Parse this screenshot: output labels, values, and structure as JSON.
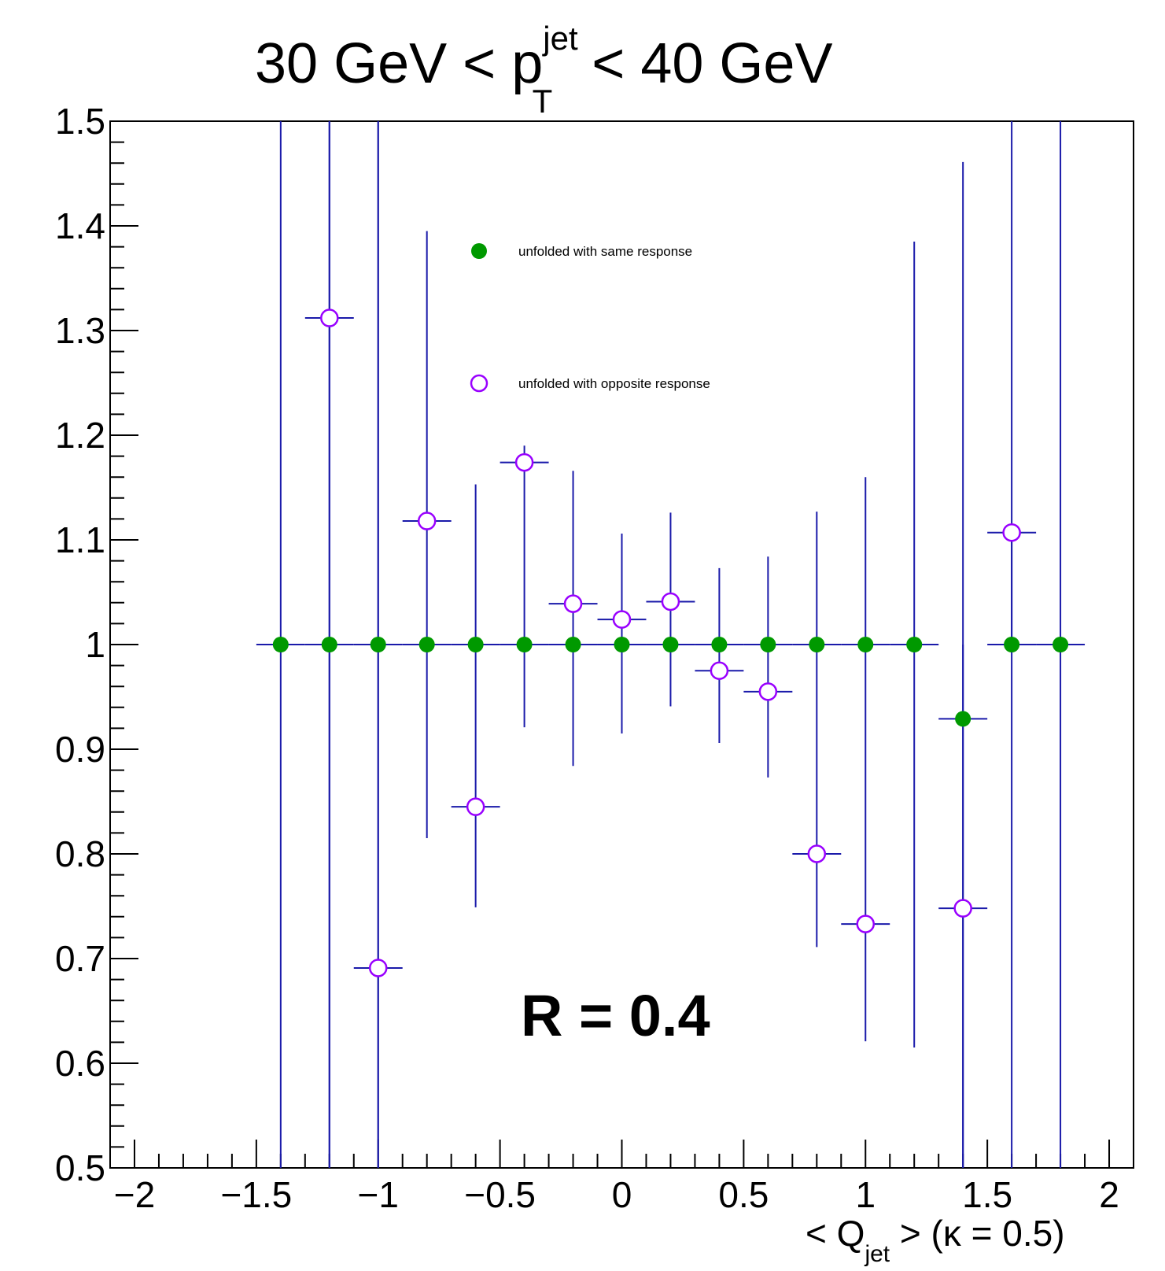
{
  "chart_data": {
    "type": "scatter",
    "title": {
      "prefix": "30 GeV < p",
      "superscript": "jet",
      "subscript": "T",
      "suffix": " < 40 GeV"
    },
    "xlabel": {
      "prefix": "< Q",
      "subscript": "jet",
      "suffix": " >  (κ = 0.5)"
    },
    "ylabel": "",
    "xlim": [
      -2.1,
      2.1
    ],
    "ylim": [
      0.5,
      1.5
    ],
    "x_ticks": [
      {
        "value": -2,
        "label": "−2"
      },
      {
        "value": -1.5,
        "label": "−1.5"
      },
      {
        "value": -1,
        "label": "−1"
      },
      {
        "value": -0.5,
        "label": "−0.5"
      },
      {
        "value": 0,
        "label": "0"
      },
      {
        "value": 0.5,
        "label": "0.5"
      },
      {
        "value": 1,
        "label": "1"
      },
      {
        "value": 1.5,
        "label": "1.5"
      },
      {
        "value": 2,
        "label": "2"
      }
    ],
    "y_ticks": [
      {
        "value": 0.5,
        "label": "0.5"
      },
      {
        "value": 0.6,
        "label": "0.6"
      },
      {
        "value": 0.7,
        "label": "0.7"
      },
      {
        "value": 0.8,
        "label": "0.8"
      },
      {
        "value": 0.9,
        "label": "0.9"
      },
      {
        "value": 1.0,
        "label": "1"
      },
      {
        "value": 1.1,
        "label": "1.1"
      },
      {
        "value": 1.2,
        "label": "1.2"
      },
      {
        "value": 1.3,
        "label": "1.3"
      },
      {
        "value": 1.4,
        "label": "1.4"
      },
      {
        "value": 1.5,
        "label": "1.5"
      }
    ],
    "grid": false,
    "legend_position": "top-center",
    "annotation": "R = 0.4",
    "error_bar_color": "#1a1aaa",
    "series": [
      {
        "name": "unfolded with same response",
        "marker": "filled-circle",
        "color": "#009900",
        "points": [
          {
            "x": -1.4,
            "y": 1.0,
            "xerr": 0.1,
            "ylo": 0.5,
            "yhi": 1.5
          },
          {
            "x": -1.2,
            "y": 1.0,
            "xerr": 0.1,
            "ylo": 0.5,
            "yhi": 1.5
          },
          {
            "x": -1.0,
            "y": 1.0,
            "xerr": 0.1,
            "ylo": 0.5,
            "yhi": 1.5
          },
          {
            "x": -0.8,
            "y": 1.0,
            "xerr": 0.1,
            "ylo": 1.0,
            "yhi": 1.0
          },
          {
            "x": -0.6,
            "y": 1.0,
            "xerr": 0.1,
            "ylo": 1.0,
            "yhi": 1.0
          },
          {
            "x": -0.4,
            "y": 1.0,
            "xerr": 0.1,
            "ylo": 1.0,
            "yhi": 1.0
          },
          {
            "x": -0.2,
            "y": 1.0,
            "xerr": 0.1,
            "ylo": 1.0,
            "yhi": 1.0
          },
          {
            "x": 0.0,
            "y": 1.0,
            "xerr": 0.1,
            "ylo": 1.0,
            "yhi": 1.0
          },
          {
            "x": 0.2,
            "y": 1.0,
            "xerr": 0.1,
            "ylo": 1.0,
            "yhi": 1.0
          },
          {
            "x": 0.4,
            "y": 1.0,
            "xerr": 0.1,
            "ylo": 1.0,
            "yhi": 1.0
          },
          {
            "x": 0.6,
            "y": 1.0,
            "xerr": 0.1,
            "ylo": 1.0,
            "yhi": 1.0
          },
          {
            "x": 0.8,
            "y": 1.0,
            "xerr": 0.1,
            "ylo": 1.0,
            "yhi": 1.0
          },
          {
            "x": 1.0,
            "y": 1.0,
            "xerr": 0.1,
            "ylo": 1.0,
            "yhi": 1.0
          },
          {
            "x": 1.2,
            "y": 1.0,
            "xerr": 0.1,
            "ylo": 1.0,
            "yhi": 1.0
          },
          {
            "x": 1.4,
            "y": 0.929,
            "xerr": 0.1,
            "ylo": 0.5,
            "yhi": 1.461
          },
          {
            "x": 1.6,
            "y": 1.0,
            "xerr": 0.1,
            "ylo": 0.5,
            "yhi": 1.5
          },
          {
            "x": 1.8,
            "y": 1.0,
            "xerr": 0.1,
            "ylo": 0.5,
            "yhi": 1.5
          }
        ]
      },
      {
        "name": "unfolded with opposite response",
        "marker": "open-circle",
        "color": "#9900ff",
        "points": [
          {
            "x": -1.2,
            "y": 1.312,
            "xerr": 0.1,
            "ylo": 0.5,
            "yhi": 1.5
          },
          {
            "x": -1.0,
            "y": 0.691,
            "xerr": 0.1,
            "ylo": 0.5,
            "yhi": 1.5
          },
          {
            "x": -0.8,
            "y": 1.118,
            "xerr": 0.1,
            "ylo": 0.815,
            "yhi": 1.395
          },
          {
            "x": -0.6,
            "y": 0.845,
            "xerr": 0.1,
            "ylo": 0.749,
            "yhi": 1.153
          },
          {
            "x": -0.4,
            "y": 1.174,
            "xerr": 0.1,
            "ylo": 0.921,
            "yhi": 1.19
          },
          {
            "x": -0.2,
            "y": 1.039,
            "xerr": 0.1,
            "ylo": 0.884,
            "yhi": 1.166
          },
          {
            "x": 0.0,
            "y": 1.024,
            "xerr": 0.1,
            "ylo": 0.915,
            "yhi": 1.106
          },
          {
            "x": 0.2,
            "y": 1.041,
            "xerr": 0.1,
            "ylo": 0.941,
            "yhi": 1.126
          },
          {
            "x": 0.4,
            "y": 0.975,
            "xerr": 0.1,
            "ylo": 0.906,
            "yhi": 1.073
          },
          {
            "x": 0.6,
            "y": 0.955,
            "xerr": 0.1,
            "ylo": 0.873,
            "yhi": 1.084
          },
          {
            "x": 0.8,
            "y": 0.8,
            "xerr": 0.1,
            "ylo": 0.711,
            "yhi": 1.127
          },
          {
            "x": 1.0,
            "y": 0.733,
            "xerr": 0.1,
            "ylo": 0.621,
            "yhi": 1.16
          },
          {
            "x": 1.2,
            "y": 1.0,
            "xerr": 0.0,
            "ylo": 0.615,
            "yhi": 1.385
          },
          {
            "x": 1.4,
            "y": 0.748,
            "xerr": 0.1,
            "ylo": 0.5,
            "yhi": 1.0
          },
          {
            "x": 1.6,
            "y": 1.107,
            "xerr": 0.1,
            "ylo": 1.0,
            "yhi": 1.107
          }
        ]
      }
    ]
  }
}
